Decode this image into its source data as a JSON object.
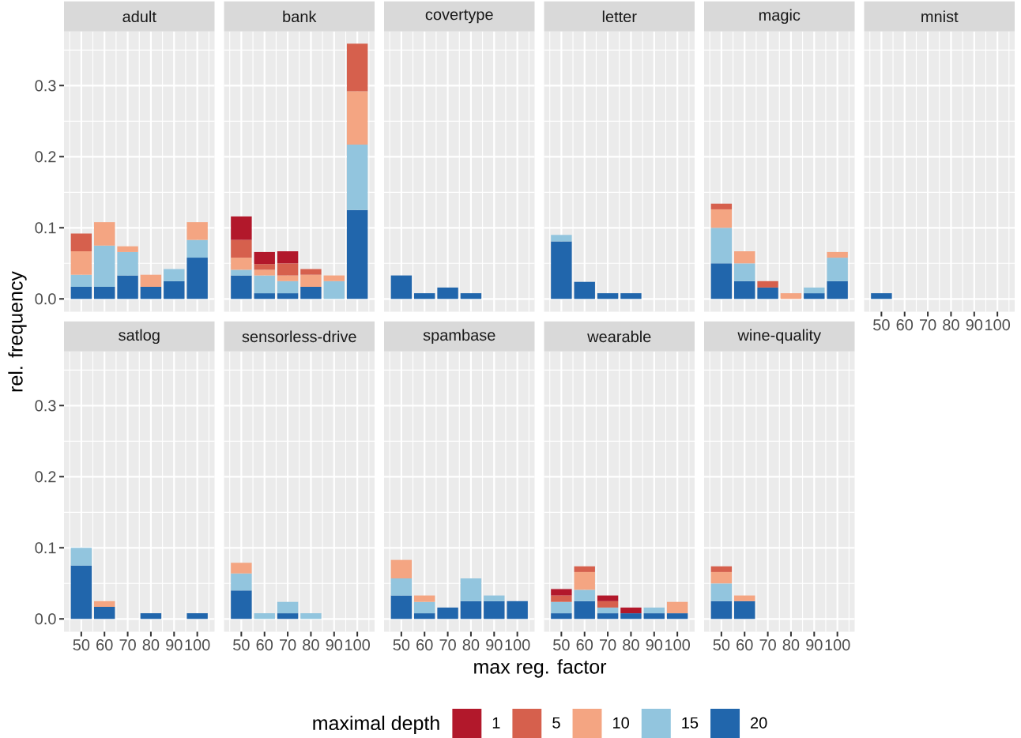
{
  "chart_data": [
    {
      "type": "bar",
      "title": "adult",
      "stacked": true,
      "x": [
        50,
        60,
        70,
        80,
        90,
        100
      ],
      "xlim": [
        42.55,
        107.45
      ],
      "xticks": [
        50,
        60,
        70,
        80,
        90,
        100
      ],
      "ylim": [
        -0.018,
        0.376
      ],
      "yticks": [
        {
          "value": 0,
          "label": "0.0"
        },
        0.1,
        0.2,
        0.3
      ],
      "grid": true,
      "tick_labels": "y",
      "ylabel": "rel. frequency",
      "series": [
        {
          "color": "#2166ac",
          "values": [
            0.017,
            0.017,
            0.033,
            0.017,
            0.025,
            0.058
          ]
        },
        {
          "color": "#92c5de",
          "values": [
            0.017,
            0.058,
            0.033,
            0,
            0.017,
            0.025
          ]
        },
        {
          "color": "#f4a582",
          "values": [
            0.033,
            0.033,
            0.008,
            0.017,
            0,
            0.025
          ]
        },
        {
          "color": "#d6604d",
          "values": [
            0.025,
            0,
            0,
            0,
            0,
            0
          ]
        }
      ]
    },
    {
      "type": "bar",
      "title": "bank",
      "stacked": true,
      "x": [
        50,
        60,
        70,
        80,
        90,
        100
      ],
      "xlim": [
        42.55,
        107.45
      ],
      "xticks": [
        50,
        60,
        70,
        80,
        90,
        100
      ],
      "ylim": [
        -0.018,
        0.376
      ],
      "yticks": [
        0,
        0.1,
        0.2,
        0.3
      ],
      "grid": true,
      "tick_labels": false,
      "series": [
        {
          "color": "#2166ac",
          "values": [
            0.033,
            0.008,
            0.008,
            0.017,
            0,
            0.125
          ]
        },
        {
          "color": "#92c5de",
          "values": [
            0.008,
            0.025,
            0.017,
            0,
            0.025,
            0.092
          ]
        },
        {
          "color": "#f4a582",
          "values": [
            0.017,
            0.008,
            0.008,
            0.017,
            0.008,
            0.075
          ]
        },
        {
          "color": "#d6604d",
          "values": [
            0.025,
            0.008,
            0.017,
            0.008,
            0,
            0.067
          ]
        },
        {
          "color": "#b2182b",
          "values": [
            0.033,
            0.017,
            0.017,
            0,
            0,
            0
          ]
        }
      ]
    },
    {
      "type": "bar",
      "title": "covertype",
      "stacked": true,
      "x": [
        50,
        60,
        70,
        80,
        90,
        100
      ],
      "xlim": [
        42.55,
        107.45
      ],
      "xticks": [
        50,
        60,
        70,
        80,
        90,
        100
      ],
      "ylim": [
        -0.018,
        0.376
      ],
      "yticks": [
        0,
        0.1,
        0.2,
        0.3
      ],
      "grid": true,
      "tick_labels": false,
      "series": [
        {
          "color": "#2166ac",
          "values": [
            0.033,
            0.008,
            0.016,
            0.008,
            0,
            0
          ]
        }
      ]
    },
    {
      "type": "bar",
      "title": "letter",
      "stacked": true,
      "x": [
        50,
        60,
        70,
        80,
        90,
        100
      ],
      "xlim": [
        42.55,
        107.45
      ],
      "xticks": [
        50,
        60,
        70,
        80,
        90,
        100
      ],
      "ylim": [
        -0.018,
        0.376
      ],
      "yticks": [
        0,
        0.1,
        0.2,
        0.3
      ],
      "grid": true,
      "tick_labels": false,
      "series": [
        {
          "color": "#2166ac",
          "values": [
            0.081,
            0.024,
            0.008,
            0.008,
            0,
            0
          ]
        },
        {
          "color": "#92c5de",
          "values": [
            0.009,
            0,
            0,
            0,
            0,
            0
          ]
        }
      ]
    },
    {
      "type": "bar",
      "title": "magic",
      "stacked": true,
      "x": [
        50,
        60,
        70,
        80,
        90,
        100
      ],
      "xlim": [
        42.55,
        107.45
      ],
      "xticks": [
        50,
        60,
        70,
        80,
        90,
        100
      ],
      "ylim": [
        -0.018,
        0.376
      ],
      "yticks": [
        0,
        0.1,
        0.2,
        0.3
      ],
      "grid": true,
      "tick_labels": false,
      "series": [
        {
          "color": "#2166ac",
          "values": [
            0.05,
            0.025,
            0.016,
            0,
            0.008,
            0.025
          ]
        },
        {
          "color": "#92c5de",
          "values": [
            0.05,
            0.025,
            0,
            0,
            0.008,
            0.033
          ]
        },
        {
          "color": "#f4a582",
          "values": [
            0.026,
            0.017,
            0,
            0.008,
            0,
            0.008
          ]
        },
        {
          "color": "#d6604d",
          "values": [
            0.008,
            0,
            0.009,
            0,
            0,
            0
          ]
        }
      ]
    },
    {
      "type": "bar",
      "title": "mnist",
      "stacked": true,
      "x": [
        50,
        60,
        70,
        80,
        90,
        100
      ],
      "xlim": [
        42.55,
        107.45
      ],
      "xticks": [
        50,
        60,
        70,
        80,
        90,
        100
      ],
      "ylim": [
        -0.018,
        0.376
      ],
      "yticks": [
        0,
        0.1,
        0.2,
        0.3
      ],
      "grid": true,
      "tick_labels": "x",
      "series": [
        {
          "color": "#2166ac",
          "values": [
            0.008,
            0,
            0,
            0,
            0,
            0
          ]
        }
      ]
    },
    {
      "type": "bar",
      "title": "satlog",
      "stacked": true,
      "x": [
        50,
        60,
        70,
        80,
        90,
        100
      ],
      "xlim": [
        42.55,
        107.45
      ],
      "xticks": [
        50,
        60,
        70,
        80,
        90,
        100
      ],
      "ylim": [
        -0.018,
        0.376
      ],
      "yticks": [
        {
          "value": 0,
          "label": "0.0"
        },
        0.1,
        0.2,
        0.3
      ],
      "grid": true,
      "series": [
        {
          "color": "#2166ac",
          "values": [
            0.075,
            0.017,
            0,
            0.008,
            0,
            0.008
          ]
        },
        {
          "color": "#92c5de",
          "values": [
            0.025,
            0,
            0,
            0,
            0,
            0
          ]
        },
        {
          "color": "#f4a582",
          "values": [
            0,
            0.008,
            0,
            0,
            0,
            0
          ]
        }
      ]
    },
    {
      "type": "bar",
      "title": "sensorless-drive",
      "stacked": true,
      "x": [
        50,
        60,
        70,
        80,
        90,
        100
      ],
      "xlim": [
        42.55,
        107.45
      ],
      "xticks": [
        50,
        60,
        70,
        80,
        90,
        100
      ],
      "ylim": [
        -0.018,
        0.376
      ],
      "yticks": [
        0,
        0.1,
        0.2,
        0.3
      ],
      "grid": true,
      "tick_labels": "x",
      "series": [
        {
          "color": "#2166ac",
          "values": [
            0.04,
            0,
            0.008,
            0,
            0,
            0
          ]
        },
        {
          "color": "#92c5de",
          "values": [
            0.024,
            0.008,
            0.016,
            0.008,
            0,
            0
          ]
        },
        {
          "color": "#f4a582",
          "values": [
            0.015,
            0,
            0,
            0,
            0,
            0
          ]
        }
      ]
    },
    {
      "type": "bar",
      "title": "spambase",
      "stacked": true,
      "x": [
        50,
        60,
        70,
        80,
        90,
        100
      ],
      "xlim": [
        42.55,
        107.45
      ],
      "xticks": [
        50,
        60,
        70,
        80,
        90,
        100
      ],
      "ylim": [
        -0.018,
        0.376
      ],
      "yticks": [
        0,
        0.1,
        0.2,
        0.3
      ],
      "grid": true,
      "tick_labels": "x",
      "series": [
        {
          "color": "#2166ac",
          "values": [
            0.033,
            0.008,
            0.016,
            0.025,
            0.025,
            0.025
          ]
        },
        {
          "color": "#92c5de",
          "values": [
            0.024,
            0.016,
            0,
            0.032,
            0.008,
            0
          ]
        },
        {
          "color": "#f4a582",
          "values": [
            0.026,
            0.009,
            0,
            0,
            0,
            0
          ]
        }
      ]
    },
    {
      "type": "bar",
      "title": "wearable",
      "stacked": true,
      "x": [
        50,
        60,
        70,
        80,
        90,
        100
      ],
      "xlim": [
        42.55,
        107.45
      ],
      "xticks": [
        50,
        60,
        70,
        80,
        90,
        100
      ],
      "ylim": [
        -0.018,
        0.376
      ],
      "yticks": [
        0,
        0.1,
        0.2,
        0.3
      ],
      "grid": true,
      "tick_labels": "x",
      "xlabel": "max reg. factor",
      "legend": "bottom",
      "legend_title": "maximal depth",
      "series": [
        {
          "name": "20",
          "color": "#2166ac",
          "values": [
            0.008,
            0.025,
            0.008,
            0.008,
            0.008,
            0.008
          ]
        },
        {
          "name": "15",
          "color": "#92c5de",
          "values": [
            0.016,
            0.016,
            0.008,
            0,
            0.008,
            0
          ]
        },
        {
          "name": "10",
          "color": "#f4a582",
          "values": [
            0,
            0.025,
            0,
            0,
            0,
            0.016
          ]
        },
        {
          "name": "5",
          "color": "#d6604d",
          "values": [
            0.009,
            0.008,
            0.009,
            0,
            0,
            0
          ]
        },
        {
          "name": "1",
          "color": "#b2182b",
          "values": [
            0.009,
            0,
            0.008,
            0.008,
            0,
            0
          ]
        }
      ]
    },
    {
      "type": "bar",
      "title": "wine-quality",
      "stacked": true,
      "x": [
        50,
        60,
        70,
        80,
        90,
        100
      ],
      "xlim": [
        42.55,
        107.45
      ],
      "xticks": [
        50,
        60,
        70,
        80,
        90,
        100
      ],
      "ylim": [
        -0.018,
        0.376
      ],
      "yticks": [
        0,
        0.1,
        0.2,
        0.3
      ],
      "grid": true,
      "tick_labels": "x",
      "series": [
        {
          "color": "#2166ac",
          "values": [
            0.025,
            0.025,
            0,
            0,
            0,
            0
          ]
        },
        {
          "color": "#92c5de",
          "values": [
            0.025,
            0,
            0,
            0,
            0,
            0
          ]
        },
        {
          "color": "#f4a582",
          "values": [
            0.016,
            0.008,
            0,
            0,
            0,
            0
          ]
        },
        {
          "color": "#d6604d",
          "values": [
            0.008,
            0,
            0,
            0,
            0,
            0
          ]
        }
      ]
    }
  ]
}
